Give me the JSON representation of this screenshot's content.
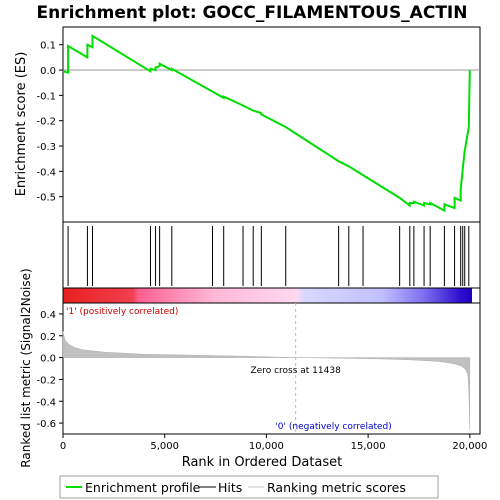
{
  "chart_data": {
    "type": "line",
    "title": "Enrichment plot: GOCC_FILAMENTOUS_ACTIN",
    "xlabel": "Rank in Ordered Dataset",
    "ylabel_top": "Enrichment score (ES)",
    "ylabel_bottom": "Ranked list metric (Signal2Noise)",
    "xlim": [
      0,
      20500
    ],
    "es_ylim": [
      -0.6,
      0.17
    ],
    "metric_ylim": [
      -0.7,
      0.5
    ],
    "x_ticks": [
      0,
      5000,
      10000,
      15000,
      20000
    ],
    "x_tick_labels": [
      "0",
      "5,000",
      "10,000",
      "15,000",
      "20,000"
    ],
    "es_ticks": [
      0.1,
      0.0,
      -0.1,
      -0.2,
      -0.3,
      -0.4,
      -0.5
    ],
    "es_tick_labels": [
      "0.1",
      "0.0",
      "-0.1",
      "-0.2",
      "-0.3",
      "-0.4",
      "-0.5"
    ],
    "metric_ticks": [
      0.4,
      0.2,
      0.0,
      -0.2,
      -0.4,
      -0.6
    ],
    "metric_tick_labels": [
      "0.4",
      "0.2",
      "0.0",
      "-0.2",
      "-0.4",
      "-0.6"
    ],
    "hits": [
      250,
      1200,
      1450,
      4300,
      4550,
      4750,
      5350,
      7350,
      7900,
      8850,
      9350,
      9750,
      10950,
      13550,
      14050,
      14750,
      16550,
      17050,
      17250,
      17750,
      18050,
      18750,
      19250,
      19550,
      19650,
      19750,
      19950
    ],
    "es_curve": {
      "x": [
        0,
        250,
        251,
        1199,
        1200,
        1449,
        1450,
        4299,
        4300,
        4549,
        4550,
        4749,
        4750,
        5349,
        5350,
        7349,
        7350,
        7899,
        7900,
        8849,
        8850,
        9349,
        9350,
        9749,
        9750,
        10949,
        10950,
        13549,
        13550,
        14049,
        14050,
        14749,
        14750,
        16549,
        16550,
        17049,
        17050,
        17249,
        17250,
        17749,
        17750,
        18049,
        18050,
        18749,
        18750,
        19249,
        19250,
        19549,
        19550,
        19649,
        19650,
        19749,
        19750,
        19949,
        19950,
        20000
      ],
      "y": [
        -0.005,
        -0.01,
        0.095,
        0.05,
        0.1,
        0.09,
        0.135,
        -0.005,
        0.005,
        0.0,
        0.01,
        0.015,
        0.025,
        0.0,
        0.005,
        -0.085,
        -0.085,
        -0.11,
        -0.105,
        -0.14,
        -0.14,
        -0.16,
        -0.16,
        -0.17,
        -0.175,
        -0.225,
        -0.225,
        -0.36,
        -0.36,
        -0.38,
        -0.38,
        -0.415,
        -0.415,
        -0.505,
        -0.505,
        -0.535,
        -0.525,
        -0.525,
        -0.52,
        -0.535,
        -0.525,
        -0.53,
        -0.525,
        -0.555,
        -0.53,
        -0.545,
        -0.505,
        -0.515,
        -0.47,
        -0.395,
        -0.39,
        -0.32,
        -0.32,
        -0.225,
        -0.225,
        0.0
      ]
    },
    "metric_curve": {
      "x": [
        0,
        100,
        300,
        600,
        1000,
        2000,
        3000,
        4000,
        5000,
        7000,
        9000,
        11438,
        13000,
        15000,
        16000,
        17000,
        18000,
        18500,
        19000,
        19300,
        19600,
        19800,
        19900,
        19950,
        20000
      ],
      "y": [
        0.24,
        0.16,
        0.12,
        0.09,
        0.07,
        0.05,
        0.04,
        0.03,
        0.027,
        0.02,
        0.012,
        0.0,
        -0.004,
        -0.01,
        -0.014,
        -0.02,
        -0.03,
        -0.036,
        -0.05,
        -0.06,
        -0.08,
        -0.11,
        -0.16,
        -0.3,
        -0.66
      ]
    },
    "zero_cross_label": "Zero cross at 11438",
    "zero_cross": 11438,
    "pos_label": "'1' (positively correlated)",
    "neg_label": "'0' (negatively correlated)",
    "legend": [
      {
        "name": "Enrichment profile",
        "color": "#00dd00"
      },
      {
        "name": "Hits",
        "color": "#000000"
      },
      {
        "name": "Ranking metric scores",
        "color": "#c8c8c8"
      }
    ],
    "legend_placement": "bottom",
    "grid": false,
    "colors": {
      "es_line": "#00dd00",
      "metric_fill": "#c0c0c0",
      "hit": "#000000",
      "zero_line": "#999999",
      "bar_pos_strong": "#e83030",
      "bar_pos_weak": "#ffc0e0",
      "bar_neg_weak": "#c8c8ff",
      "bar_neg_strong": "#3020e0"
    }
  }
}
